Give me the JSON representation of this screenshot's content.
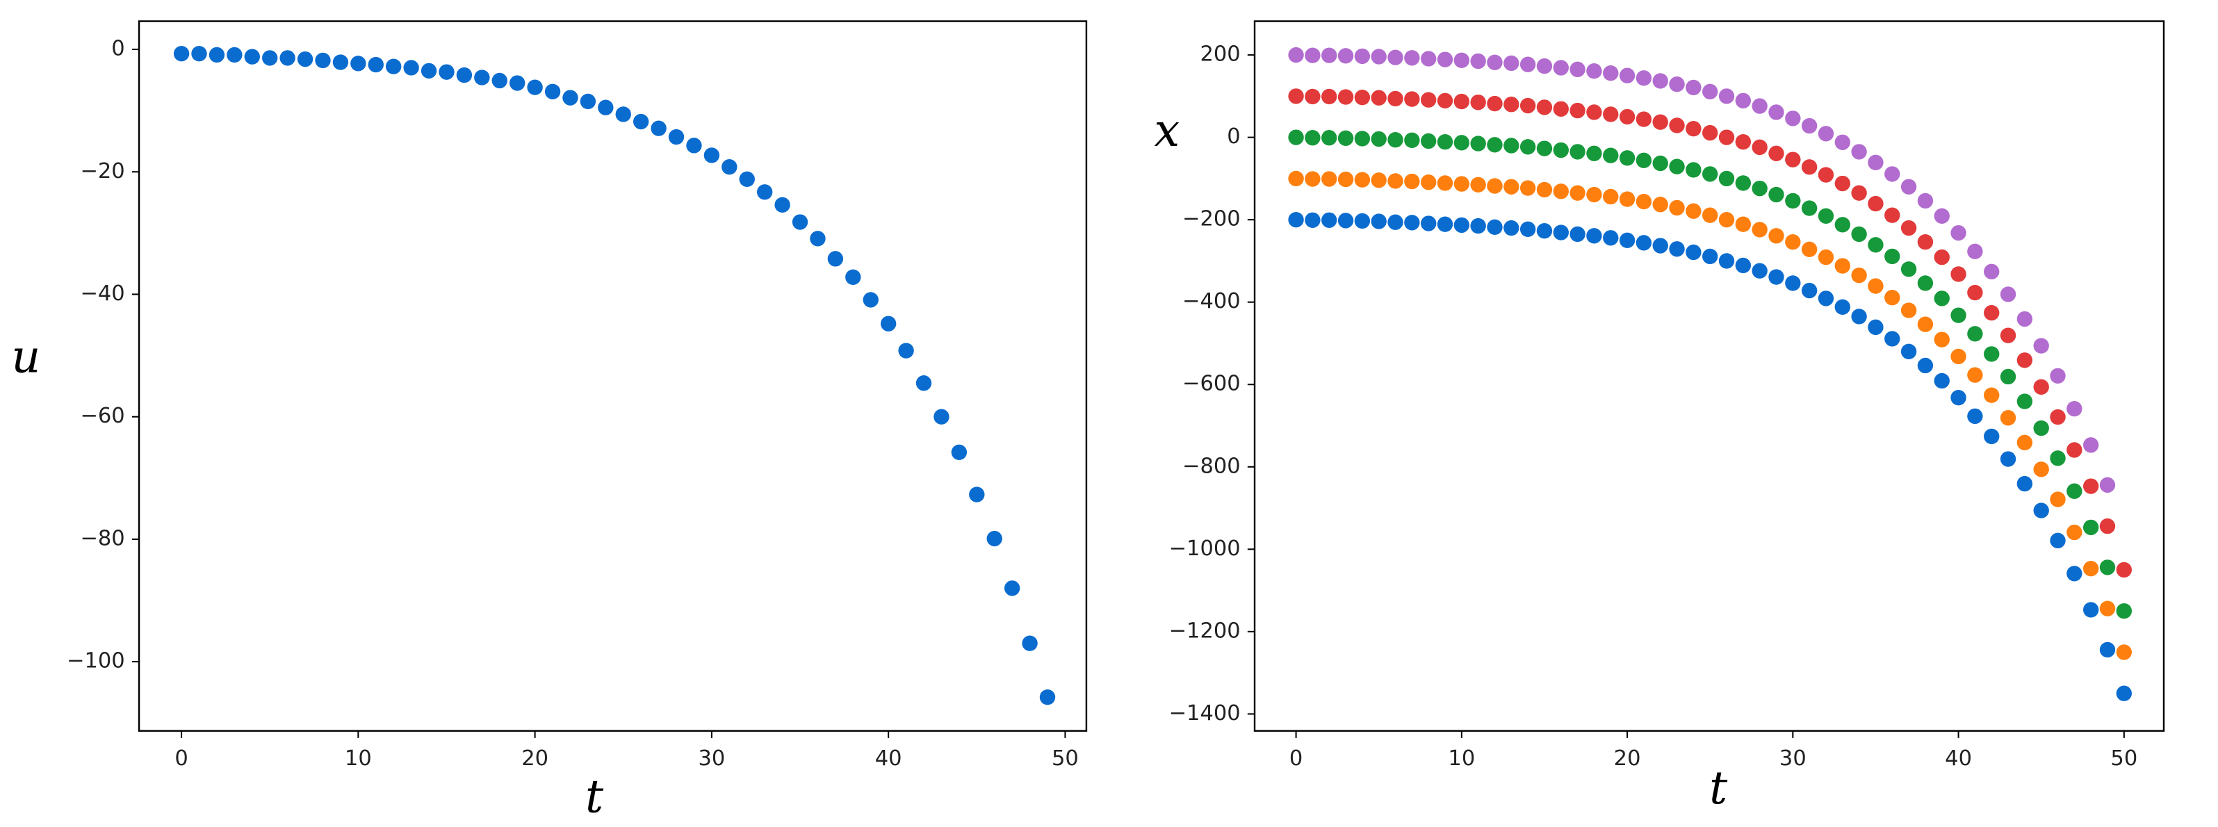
{
  "chart_data": [
    {
      "type": "scatter",
      "xlabel": "t",
      "ylabel": "u",
      "color": "#0b6cd0",
      "x": [
        0,
        1,
        2,
        3,
        4,
        5,
        6,
        7,
        8,
        9,
        10,
        11,
        12,
        13,
        14,
        15,
        16,
        17,
        18,
        19,
        20,
        21,
        22,
        23,
        24,
        25,
        26,
        27,
        28,
        29,
        30,
        31,
        32,
        33,
        34,
        35,
        36,
        37,
        38,
        39,
        40,
        41,
        42,
        43,
        44,
        45,
        46,
        47,
        48,
        49
      ],
      "values": [
        -0.7,
        -0.7,
        -0.9,
        -0.9,
        -1.2,
        -1.4,
        -1.4,
        -1.6,
        -1.8,
        -2.1,
        -2.3,
        -2.5,
        -2.8,
        -3,
        -3.5,
        -3.7,
        -4.2,
        -4.6,
        -5.1,
        -5.5,
        -6.2,
        -6.9,
        -7.9,
        -8.5,
        -9.5,
        -10.6,
        -11.8,
        -12.9,
        -14.3,
        -15.7,
        -17.3,
        -19.2,
        -21.2,
        -23.3,
        -25.4,
        -28.2,
        -30.9,
        -34.2,
        -37.2,
        -40.9,
        -44.8,
        -49.2,
        -54.5,
        -60,
        -65.8,
        -72.7,
        -79.9,
        -88,
        -97,
        -105.8
      ],
      "xlim": [
        -2.4,
        51.2
      ],
      "xticks": [
        0,
        10,
        20,
        30,
        40,
        50
      ],
      "ylim": [
        -111.3,
        4.6
      ],
      "yticks": [
        0,
        {
          "value": -20,
          "label": "−20"
        },
        {
          "value": -40,
          "label": "−40"
        },
        {
          "value": -60,
          "label": "−60"
        },
        {
          "value": -80,
          "label": "−80"
        },
        {
          "value": -100,
          "label": "−100"
        }
      ]
    },
    {
      "type": "scatter",
      "xlabel": "t",
      "ylabel": "x",
      "x": [
        0,
        1,
        2,
        3,
        4,
        5,
        6,
        7,
        8,
        9,
        10,
        11,
        12,
        13,
        14,
        15,
        16,
        17,
        18,
        19,
        20,
        21,
        22,
        23,
        24,
        25,
        26,
        27,
        28,
        29,
        30,
        31,
        32,
        33,
        34,
        35,
        36,
        37,
        38,
        39,
        40,
        41,
        42,
        43,
        44,
        45,
        46,
        47,
        48,
        49,
        50
      ],
      "series": [
        {
          "color": "#0b6cd0",
          "values": [
            -200,
            -201,
            -201,
            -202,
            -203,
            -204,
            -206,
            -207,
            -209,
            -211,
            -213,
            -215,
            -218,
            -220,
            -223,
            -227,
            -231,
            -235,
            -239,
            -244,
            -250,
            -256,
            -263,
            -271,
            -279,
            -289,
            -300,
            -311,
            -324,
            -339,
            -354,
            -372,
            -391,
            -412,
            -435,
            -461,
            -489,
            -520,
            -554,
            -591,
            -632,
            -677,
            -726,
            -781,
            -841,
            -906,
            -979,
            -1059,
            -1147,
            -1244,
            -1350
          ]
        },
        {
          "color": "#ff7f0e",
          "values": [
            -100,
            -101,
            -101,
            -102,
            -103,
            -104,
            -106,
            -107,
            -109,
            -111,
            -113,
            -115,
            -118,
            -120,
            -123,
            -127,
            -131,
            -135,
            -139,
            -144,
            -150,
            -156,
            -163,
            -171,
            -179,
            -189,
            -200,
            -211,
            -224,
            -239,
            -254,
            -272,
            -291,
            -312,
            -335,
            -361,
            -389,
            -420,
            -454,
            -491,
            -532,
            -577,
            -626,
            -681,
            -741,
            -806,
            -879,
            -959,
            -1047,
            -1144,
            -1250
          ]
        },
        {
          "color": "#16993a",
          "values": [
            0,
            -1,
            -1,
            -2,
            -3,
            -4,
            -6,
            -7,
            -9,
            -11,
            -13,
            -15,
            -18,
            -20,
            -23,
            -27,
            -31,
            -35,
            -39,
            -44,
            -50,
            -56,
            -63,
            -71,
            -79,
            -89,
            -100,
            -111,
            -124,
            -139,
            -154,
            -172,
            -191,
            -212,
            -235,
            -261,
            -289,
            -320,
            -354,
            -391,
            -432,
            -477,
            -526,
            -581,
            -641,
            -706,
            -779,
            -859,
            -947,
            -1044,
            -1150
          ]
        },
        {
          "color": "#e23a3a",
          "values": [
            100,
            99,
            99,
            98,
            97,
            96,
            94,
            93,
            91,
            89,
            87,
            85,
            82,
            80,
            77,
            73,
            69,
            65,
            61,
            56,
            50,
            44,
            37,
            29,
            21,
            11,
            0,
            -11,
            -24,
            -39,
            -54,
            -72,
            -91,
            -112,
            -135,
            -161,
            -189,
            -220,
            -254,
            -291,
            -332,
            -377,
            -426,
            -481,
            -541,
            -606,
            -679,
            -759,
            -847,
            -944,
            -1050
          ]
        },
        {
          "color": "#b26ccf",
          "values": [
            200,
            199,
            199,
            198,
            197,
            196,
            194,
            193,
            191,
            189,
            187,
            185,
            182,
            180,
            177,
            173,
            169,
            165,
            161,
            156,
            150,
            144,
            137,
            129,
            121,
            111,
            100,
            89,
            76,
            61,
            46,
            28,
            9,
            -12,
            -35,
            -61,
            -89,
            -120,
            -154,
            -191,
            -232,
            -277,
            -326,
            -381,
            -441,
            -506,
            -579,
            -659,
            -747,
            -844,
            null
          ]
        }
      ],
      "xlim": [
        -2.5,
        52.4
      ],
      "xticks": [
        0,
        10,
        20,
        30,
        40,
        50
      ],
      "ylim": [
        -1441,
        282
      ],
      "yticks": [
        200,
        0,
        {
          "value": -200,
          "label": "−200"
        },
        {
          "value": -400,
          "label": "−400"
        },
        {
          "value": -600,
          "label": "−600"
        },
        {
          "value": -800,
          "label": "−800"
        },
        {
          "value": -1000,
          "label": "−1000"
        },
        {
          "value": -1200,
          "label": "−1200"
        },
        {
          "value": -1400,
          "label": "−1400"
        }
      ]
    }
  ]
}
